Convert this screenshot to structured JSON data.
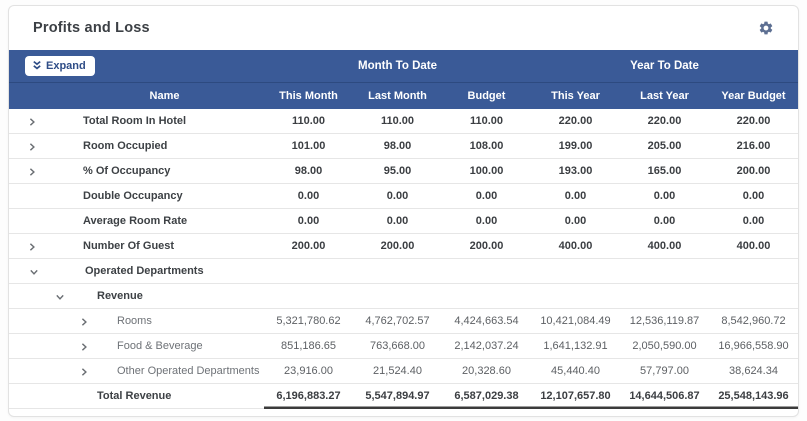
{
  "header": {
    "title": "Profits and Loss",
    "settings_icon": "gear-icon"
  },
  "toolbar": {
    "expand_label": "Expand",
    "expand_icon": "double-chevron-down-icon"
  },
  "colors": {
    "band_blue": "#3a5a97",
    "band_divider": "#2d4a80",
    "expand_text": "#2f4d87",
    "bold_text": "#3b3e42",
    "dim_text": "#6e7277",
    "total_underline": "#3b3b3b"
  },
  "table": {
    "groups": [
      {
        "label": "Month To Date",
        "span": 3
      },
      {
        "label": "Year To Date",
        "span": 3
      }
    ],
    "columns": [
      "Name",
      "This Month",
      "Last Month",
      "Budget",
      "This Year",
      "Last Year",
      "Year Budget"
    ],
    "rows": [
      {
        "label": "Total Room In Hotel",
        "indent": 0,
        "expand": "collapsed",
        "bold": true,
        "values": [
          "110.00",
          "110.00",
          "110.00",
          "220.00",
          "220.00",
          "220.00"
        ]
      },
      {
        "label": "Room Occupied",
        "indent": 0,
        "expand": "collapsed",
        "bold": true,
        "values": [
          "101.00",
          "98.00",
          "108.00",
          "199.00",
          "205.00",
          "216.00"
        ]
      },
      {
        "label": "% Of Occupancy",
        "indent": 0,
        "expand": "collapsed",
        "bold": true,
        "values": [
          "98.00",
          "95.00",
          "100.00",
          "193.00",
          "165.00",
          "200.00"
        ]
      },
      {
        "label": "Double Occupancy",
        "indent": 0,
        "expand": "none",
        "bold": true,
        "values": [
          "0.00",
          "0.00",
          "0.00",
          "0.00",
          "0.00",
          "0.00"
        ]
      },
      {
        "label": "Average Room Rate",
        "indent": 0,
        "expand": "none",
        "bold": true,
        "values": [
          "0.00",
          "0.00",
          "0.00",
          "0.00",
          "0.00",
          "0.00"
        ]
      },
      {
        "label": "Number Of Guest",
        "indent": 0,
        "expand": "collapsed",
        "bold": true,
        "values": [
          "200.00",
          "200.00",
          "200.00",
          "400.00",
          "400.00",
          "400.00"
        ]
      },
      {
        "label": "Operated Departments",
        "indent": 1,
        "expand": "expanded",
        "bold": true,
        "values": [
          "",
          "",
          "",
          "",
          "",
          ""
        ]
      },
      {
        "label": "Revenue",
        "indent": 2,
        "expand": "expanded",
        "bold": true,
        "values": [
          "",
          "",
          "",
          "",
          "",
          ""
        ]
      },
      {
        "label": "Rooms",
        "indent": 3,
        "expand": "collapsed",
        "bold": false,
        "values": [
          "5,321,780.62",
          "4,762,702.57",
          "4,424,663.54",
          "10,421,084.49",
          "12,536,119.87",
          "8,542,960.72"
        ]
      },
      {
        "label": "Food & Beverage",
        "indent": 3,
        "expand": "collapsed",
        "bold": false,
        "values": [
          "851,186.65",
          "763,668.00",
          "2,142,037.24",
          "1,641,132.91",
          "2,050,590.00",
          "16,966,558.90"
        ]
      },
      {
        "label": "Other Operated Departments",
        "indent": 3,
        "expand": "collapsed",
        "bold": false,
        "values": [
          "23,916.00",
          "21,524.40",
          "20,328.60",
          "45,440.40",
          "57,797.00",
          "38,624.34"
        ]
      },
      {
        "label": "Total Revenue",
        "indent": 2,
        "expand": "none",
        "bold": true,
        "total": true,
        "values": [
          "6,196,883.27",
          "5,547,894.97",
          "6,587,029.38",
          "12,107,657.80",
          "14,644,506.87",
          "25,548,143.96"
        ]
      }
    ]
  }
}
